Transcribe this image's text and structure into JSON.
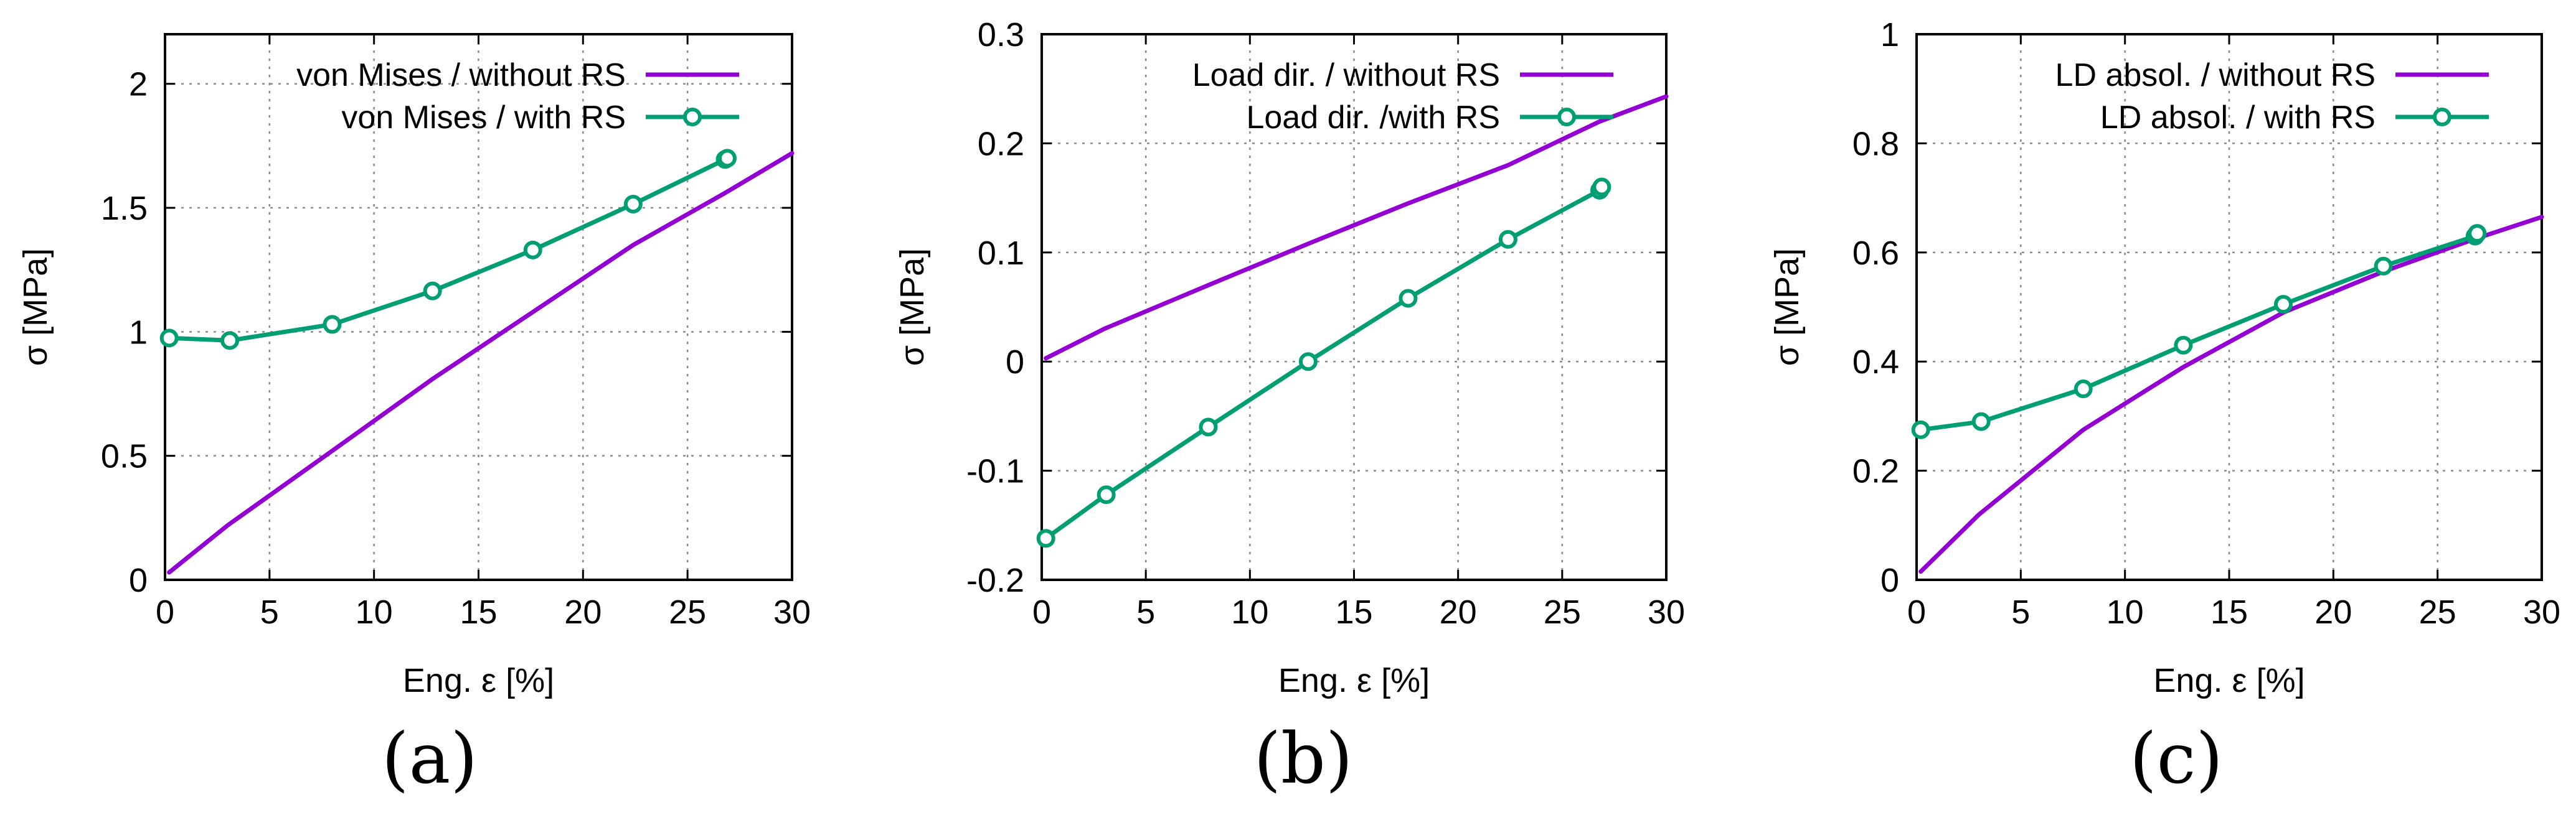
{
  "colors": {
    "without": "#9400d3",
    "with": "#009e73",
    "grid": "#8c8c8c",
    "axis": "#000000"
  },
  "chart_data": [
    {
      "type": "line",
      "panel": "a",
      "caption": "(a)",
      "title": "",
      "xlabel": "Eng. ε [%]",
      "ylabel": "σ [MPa]",
      "xlim": [
        0,
        30
      ],
      "ylim": [
        0,
        2.2
      ],
      "xticks": [
        0,
        5,
        10,
        15,
        20,
        25,
        30
      ],
      "xtick_labels": [
        "0",
        "5",
        "10",
        "15",
        "20",
        "25",
        "30"
      ],
      "yticks": [
        0,
        0.5,
        1,
        1.5,
        2
      ],
      "ytick_labels": [
        "0",
        "0.5",
        "1",
        "1.5",
        "2"
      ],
      "grid": true,
      "legend_position": "top-right",
      "series": [
        {
          "name": "von Mises / without RS",
          "style": "line",
          "color_key": "without",
          "x": [
            0.2,
            3,
            8,
            12.8,
            17.6,
            22.4,
            26.8,
            30
          ],
          "y": [
            0.03,
            0.22,
            0.52,
            0.81,
            1.08,
            1.35,
            1.56,
            1.72
          ]
        },
        {
          "name": "von Mises / with RS",
          "style": "linespoints",
          "color_key": "with",
          "x": [
            0.2,
            3.1,
            8,
            12.8,
            17.6,
            22.4,
            26.8,
            26.9
          ],
          "y": [
            0.975,
            0.965,
            1.03,
            1.165,
            1.33,
            1.515,
            1.695,
            1.7
          ]
        }
      ]
    },
    {
      "type": "line",
      "panel": "b",
      "caption": "(b)",
      "title": "",
      "xlabel": "Eng. ε [%]",
      "ylabel": "σ [MPa]",
      "xlim": [
        0,
        30
      ],
      "ylim": [
        -0.2,
        0.3
      ],
      "xticks": [
        0,
        5,
        10,
        15,
        20,
        25,
        30
      ],
      "xtick_labels": [
        "0",
        "5",
        "10",
        "15",
        "20",
        "25",
        "30"
      ],
      "yticks": [
        -0.2,
        -0.1,
        0,
        0.1,
        0.2,
        0.3
      ],
      "ytick_labels": [
        "-0.2",
        "-0.1",
        "0",
        "0.1",
        "0.2",
        "0.3"
      ],
      "grid": true,
      "legend_position": "top-right",
      "series": [
        {
          "name": "Load dir. / without RS",
          "style": "line",
          "color_key": "without",
          "x": [
            0.2,
            3,
            8,
            12.8,
            17.6,
            22.4,
            26.8,
            30
          ],
          "y": [
            0.003,
            0.03,
            0.07,
            0.108,
            0.145,
            0.18,
            0.22,
            0.243
          ]
        },
        {
          "name": "Load dir. /with RS",
          "style": "linespoints",
          "color_key": "with",
          "x": [
            0.2,
            3.1,
            8,
            12.8,
            17.6,
            22.4,
            26.8,
            26.9
          ],
          "y": [
            -0.162,
            -0.122,
            -0.06,
            0.0,
            0.058,
            0.112,
            0.157,
            0.16
          ]
        }
      ]
    },
    {
      "type": "line",
      "panel": "c",
      "caption": "(c)",
      "title": "",
      "xlabel": "Eng. ε [%]",
      "ylabel": "σ [MPa]",
      "xlim": [
        0,
        30
      ],
      "ylim": [
        0,
        1
      ],
      "xticks": [
        0,
        5,
        10,
        15,
        20,
        25,
        30
      ],
      "xtick_labels": [
        "0",
        "5",
        "10",
        "15",
        "20",
        "25",
        "30"
      ],
      "yticks": [
        0,
        0.2,
        0.4,
        0.6,
        0.8,
        1
      ],
      "ytick_labels": [
        "0",
        "0.2",
        "0.4",
        "0.6",
        "0.8",
        "1"
      ],
      "grid": true,
      "legend_position": "top-right",
      "series": [
        {
          "name": "LD absol. / without RS",
          "style": "line",
          "color_key": "without",
          "x": [
            0.2,
            3,
            8,
            12.8,
            17.6,
            22.4,
            26.8,
            30
          ],
          "y": [
            0.015,
            0.12,
            0.275,
            0.39,
            0.49,
            0.565,
            0.625,
            0.665
          ]
        },
        {
          "name": "LD absol. / with RS",
          "style": "linespoints",
          "color_key": "with",
          "x": [
            0.2,
            3.1,
            8,
            12.8,
            17.6,
            22.4,
            26.8,
            26.9
          ],
          "y": [
            0.275,
            0.29,
            0.35,
            0.43,
            0.505,
            0.575,
            0.63,
            0.635
          ]
        }
      ]
    }
  ]
}
